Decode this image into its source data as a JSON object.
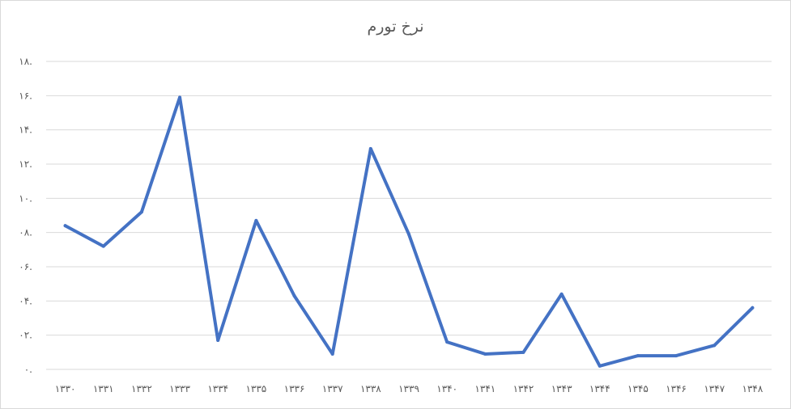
{
  "chart_data": {
    "type": "line",
    "title": "نرخ تورم",
    "xlabel": "",
    "ylabel": "",
    "categories": [
      "۱۳۳۰",
      "۱۳۳۱",
      "۱۳۳۲",
      "۱۳۳۳",
      "۱۳۳۴",
      "۱۳۳۵",
      "۱۳۳۶",
      "۱۳۳۷",
      "۱۳۳۸",
      "۱۳۳۹",
      "۱۳۴۰",
      "۱۳۴۱",
      "۱۳۴۲",
      "۱۳۴۳",
      "۱۳۴۴",
      "۱۳۴۵",
      "۱۳۴۶",
      "۱۳۴۷",
      "۱۳۴۸"
    ],
    "series": [
      {
        "color": "#4472c4",
        "values": [
          0.084,
          0.072,
          0.092,
          0.159,
          0.017,
          0.087,
          0.043,
          0.009,
          0.129,
          0.079,
          0.016,
          0.009,
          0.01,
          0.044,
          0.002,
          0.008,
          0.008,
          0.014,
          0.036
        ]
      }
    ],
    "ylim": [
      0,
      0.18
    ],
    "yticks": [
      0,
      0.02,
      0.04,
      0.06,
      0.08,
      0.1,
      0.12,
      0.14,
      0.16,
      0.18
    ],
    "ytick_labels": [
      "۰.",
      "۰۲.",
      "۰۴.",
      "۰۶.",
      "۰۸.",
      "۱۰.",
      "۱۲.",
      "۱۴.",
      "۱۶.",
      "۱۸."
    ],
    "grid": true,
    "legend": "none"
  }
}
